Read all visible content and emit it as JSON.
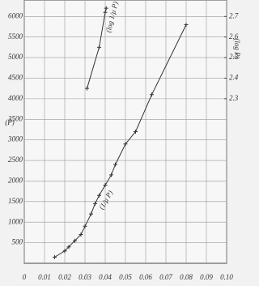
{
  "chart_data": {
    "type": "line",
    "y_label": "(P)",
    "y2_label": "(log P)",
    "xlim": [
      0,
      0.1
    ],
    "ylim": [
      0,
      6400
    ],
    "y2lim": [
      1.5,
      2.78
    ],
    "xticks": [
      0,
      0.01,
      0.02,
      0.03,
      0.04,
      0.05,
      0.06,
      0.07,
      0.08,
      0.09,
      {
        "value": 0.1,
        "label": "0.10"
      }
    ],
    "yticks": [
      500,
      1000,
      1500,
      2000,
      2500,
      3000,
      3500,
      4000,
      4500,
      5000,
      5500,
      6000
    ],
    "y2ticks": [
      2.3,
      2.4,
      2.5,
      2.6,
      2.7
    ],
    "grid": true,
    "series": [
      {
        "name": "(1/μ P)",
        "color": "#333333",
        "x": [
          0.015,
          0.02,
          0.022,
          0.025,
          0.028,
          0.03,
          0.033,
          0.035,
          0.037,
          0.04,
          0.043,
          0.045,
          0.05,
          0.055,
          0.063,
          0.08
        ],
        "values": [
          150,
          300,
          400,
          550,
          700,
          900,
          1200,
          1450,
          1650,
          1900,
          2150,
          2400,
          2900,
          3200,
          4100,
          5800
        ]
      },
      {
        "name": "(log 1/μ P)",
        "color": "#333333",
        "axis": "y2",
        "x": [
          0.031,
          0.037,
          0.04,
          0.0405
        ],
        "values": [
          2.35,
          2.55,
          2.72,
          2.74
        ]
      }
    ]
  }
}
